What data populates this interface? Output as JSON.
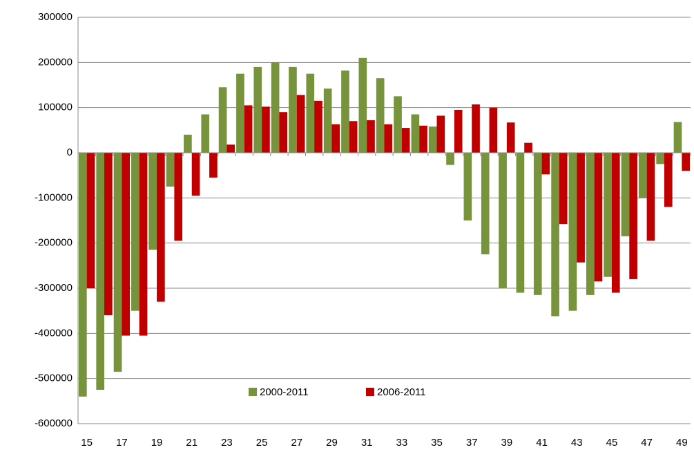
{
  "chart_data": {
    "type": "bar",
    "categories": [
      "15",
      null,
      "17",
      null,
      "19",
      null,
      "21",
      null,
      "23",
      null,
      "25",
      null,
      "27",
      null,
      "29",
      null,
      "31",
      null,
      "33",
      null,
      "35",
      null,
      "37",
      null,
      "39",
      null,
      "41",
      null,
      "43",
      null,
      "45",
      null,
      "47",
      null,
      "49"
    ],
    "series": [
      {
        "name": "2000-2011",
        "color": "#77933c",
        "values": [
          -540000,
          -525000,
          -485000,
          -350000,
          -215000,
          -75000,
          40000,
          85000,
          145000,
          175000,
          190000,
          200000,
          190000,
          175000,
          142000,
          182000,
          210000,
          165000,
          125000,
          85000,
          58000,
          -27000,
          -150000,
          -225000,
          -300000,
          -310000,
          -315000,
          -362000,
          -350000,
          -315000,
          -275000,
          -185000,
          -100000,
          -25000,
          68000
        ]
      },
      {
        "name": "2006-2011",
        "color": "#c00000",
        "values": [
          -300000,
          -360000,
          -405000,
          -405000,
          -330000,
          -195000,
          -95000,
          -55000,
          18000,
          105000,
          102000,
          90000,
          128000,
          115000,
          63000,
          70000,
          72000,
          63000,
          55000,
          60000,
          82000,
          95000,
          107000,
          100000,
          67000,
          22000,
          -48000,
          -158000,
          -243000,
          -285000,
          -310000,
          -280000,
          -195000,
          -120000,
          -40000
        ]
      }
    ],
    "ylim": [
      -600000,
      300000
    ],
    "yticks": [
      -600000,
      -500000,
      -400000,
      -300000,
      -200000,
      -100000,
      0,
      100000,
      200000,
      300000
    ],
    "grid": true,
    "legend": "bottom"
  }
}
